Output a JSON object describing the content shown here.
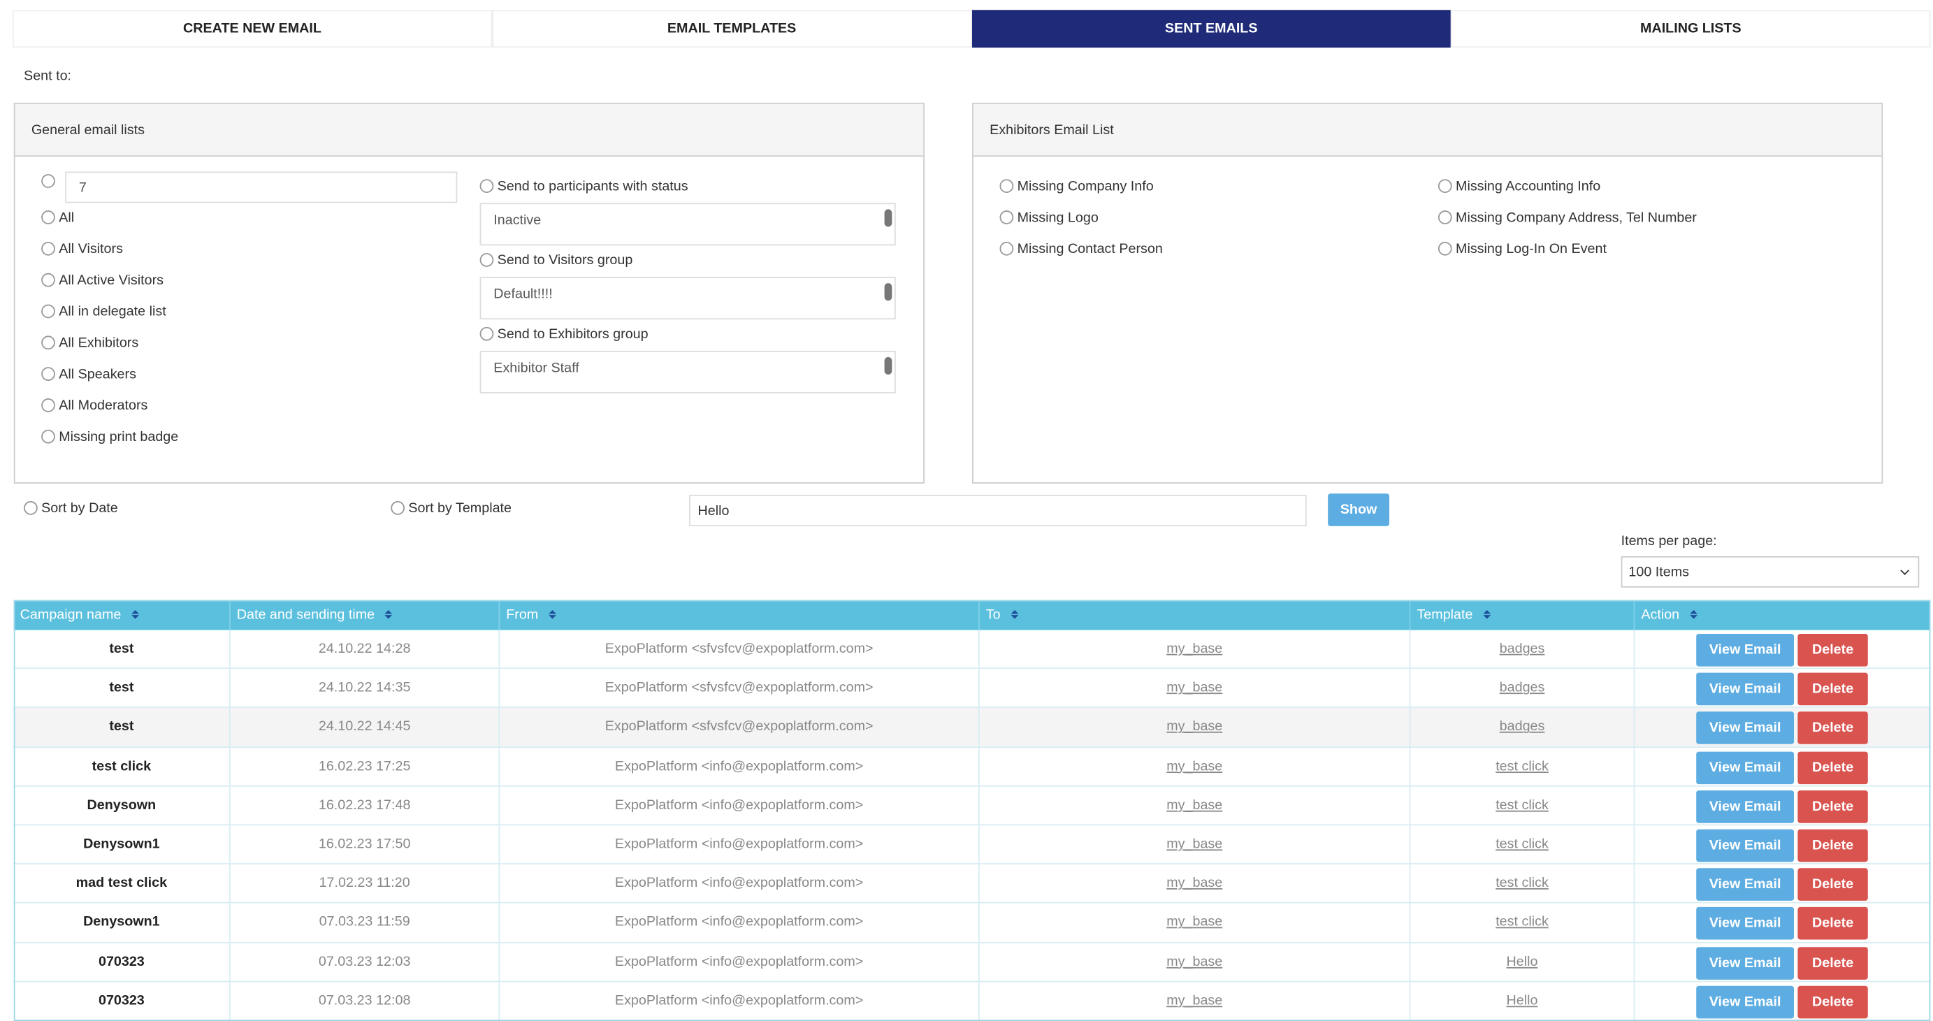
{
  "tabs": {
    "items": [
      "CREATE NEW EMAIL",
      "EMAIL TEMPLATES",
      "SENT EMAILS",
      "MAILING LISTS"
    ],
    "active": 2
  },
  "sent_to_label": "Sent to:",
  "general_panel": {
    "title": "General email lists",
    "input_value": "7",
    "options": [
      "All",
      "All Visitors",
      "All Active Visitors",
      "All in delegate list",
      "All Exhibitors",
      "All Speakers",
      "All Moderators",
      "Missing print badge"
    ],
    "groups": [
      {
        "label": "Send to participants with status",
        "value": "Inactive"
      },
      {
        "label": "Send to Visitors group",
        "value": "Default!!!!"
      },
      {
        "label": "Send to Exhibitors group",
        "value": "Exhibitor Staff"
      }
    ]
  },
  "exhibitors_panel": {
    "title": "Exhibitors Email List",
    "options": [
      [
        "Missing Company Info",
        "Missing Accounting Info"
      ],
      [
        "Missing Logo",
        "Missing Company Address, Tel Number"
      ],
      [
        "Missing Contact Person",
        "Missing Log-In On Event"
      ]
    ]
  },
  "sort": {
    "by_date": "Sort by Date",
    "by_template": "Sort by Template",
    "search_value": "Hello",
    "button": "Show"
  },
  "items_per_page": {
    "label": "Items per page:",
    "value": "100 Items"
  },
  "table": {
    "headers": [
      "Campaign name",
      "Date and sending time",
      "From",
      "To",
      "Template",
      "Action"
    ],
    "actions": [
      "View Email",
      "Delete"
    ],
    "rows": [
      [
        "test",
        "24.10.22 14:28",
        "ExpoPlatform <sfvsfcv@expoplatform.com>",
        "my_base",
        "badges"
      ],
      [
        "test",
        "24.10.22 14:35",
        "ExpoPlatform <sfvsfcv@expoplatform.com>",
        "my_base",
        "badges"
      ],
      [
        "test",
        "24.10.22 14:45",
        "ExpoPlatform <sfvsfcv@expoplatform.com>",
        "my_base",
        "badges"
      ],
      [
        "test click",
        "16.02.23 17:25",
        "ExpoPlatform <info@expoplatform.com>",
        "my_base",
        "test click"
      ],
      [
        "Denysown",
        "16.02.23 17:48",
        "ExpoPlatform <info@expoplatform.com>",
        "my_base",
        "test click"
      ],
      [
        "Denysown1",
        "16.02.23 17:50",
        "ExpoPlatform <info@expoplatform.com>",
        "my_base",
        "test click"
      ],
      [
        "mad test click",
        "17.02.23 11:20",
        "ExpoPlatform <info@expoplatform.com>",
        "my_base",
        "test click"
      ],
      [
        "Denysown1",
        "07.03.23 11:59",
        "ExpoPlatform <info@expoplatform.com>",
        "my_base",
        "test click"
      ],
      [
        "070323",
        "07.03.23 12:03",
        "ExpoPlatform <info@expoplatform.com>",
        "my_base",
        "Hello"
      ],
      [
        "070323",
        "07.03.23 12:08",
        "ExpoPlatform <info@expoplatform.com>",
        "my_base",
        "Hello"
      ]
    ]
  }
}
